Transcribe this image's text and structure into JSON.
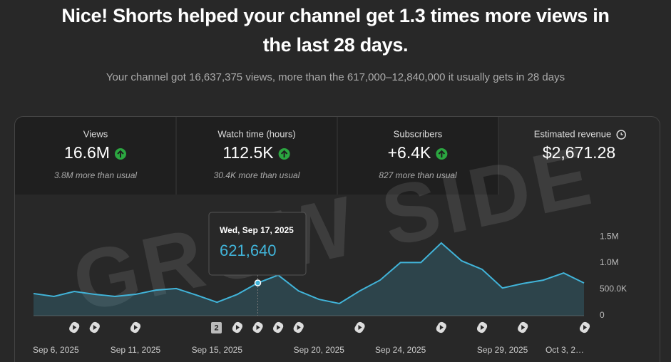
{
  "header": {
    "title": "Nice! Shorts helped your channel get 1.3 times more views in the last 28 days.",
    "subtitle": "Your channel got 16,637,375 views, more than the 617,000–12,840,000 it usually gets in 28 days"
  },
  "metrics": [
    {
      "label": "Views",
      "value": "16.6M",
      "note": "3.8M more than usual"
    },
    {
      "label": "Watch time (hours)",
      "value": "112.5K",
      "note": "30.4K more than usual"
    },
    {
      "label": "Subscribers",
      "value": "+6.4K",
      "note": "827 more than usual"
    },
    {
      "label": "Estimated revenue",
      "value": "$2,671.28"
    }
  ],
  "watermark": "GROW SIDE",
  "shorts_badge": "2",
  "chart_data": {
    "type": "line",
    "categories": [
      "Sep 6, 2025",
      null,
      null,
      null,
      null,
      "Sep 11, 2025",
      null,
      null,
      null,
      "Sep 15, 2025",
      null,
      null,
      null,
      null,
      "Sep 20, 2025",
      null,
      null,
      null,
      "Sep 24, 2025",
      null,
      null,
      null,
      null,
      "Sep 29, 2025",
      null,
      null,
      null,
      "Oct 3, 2…"
    ],
    "series": [
      {
        "name": "Views",
        "color": "#41b4d9",
        "values": [
          420000,
          365000,
          460000,
          405000,
          365000,
          405000,
          485000,
          515000,
          390000,
          255000,
          405000,
          621640,
          770000,
          470000,
          310000,
          230000,
          470000,
          675000,
          1010000,
          1010000,
          1380000,
          1040000,
          880000,
          525000,
          610000,
          675000,
          810000,
          620000
        ]
      }
    ],
    "ylim": [
      0,
      1650000
    ],
    "yticks": [
      0,
      {
        "value": 500000,
        "label": "500.0K"
      },
      {
        "value": 1000000,
        "label": "1.0M"
      },
      {
        "value": 1500000,
        "label": "1.5M"
      }
    ],
    "grid": false,
    "tooltip": {
      "date": "Wed, Sep 17, 2025",
      "value": "621,640"
    }
  }
}
